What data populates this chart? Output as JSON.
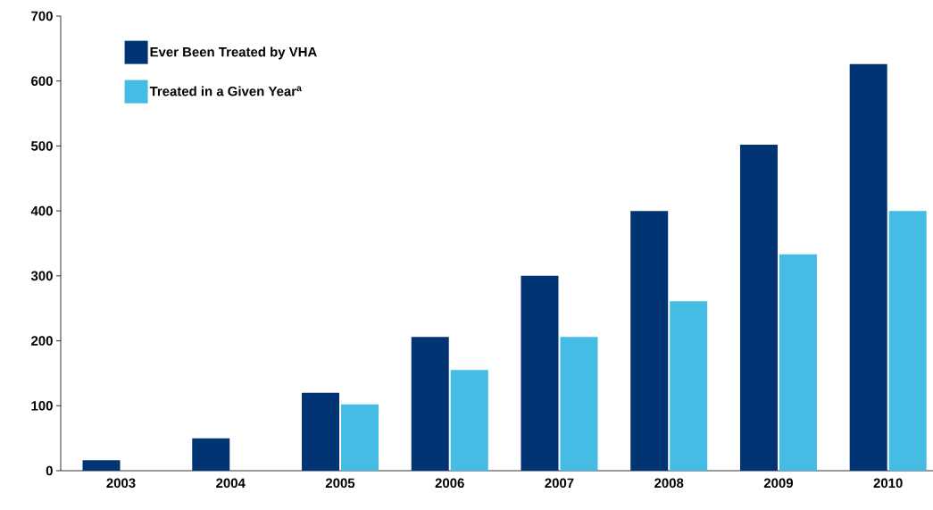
{
  "chart_data": {
    "type": "bar",
    "categories": [
      "2003",
      "2004",
      "2005",
      "2006",
      "2007",
      "2008",
      "2009",
      "2010"
    ],
    "series": [
      {
        "name": "Ever Been Treated by VHA",
        "color": "#003473",
        "values": [
          16,
          50,
          120,
          206,
          300,
          400,
          502,
          626
        ]
      },
      {
        "name": "Treated in a Given Year$^{a}$",
        "color": "#45bce3",
        "values": [
          null,
          null,
          102,
          155,
          206,
          261,
          333,
          400
        ]
      }
    ],
    "ylim": [
      0,
      700
    ],
    "yticks": [
      0,
      100,
      200,
      300,
      400,
      500,
      600,
      700
    ],
    "grid": false,
    "legend": "top left"
  }
}
